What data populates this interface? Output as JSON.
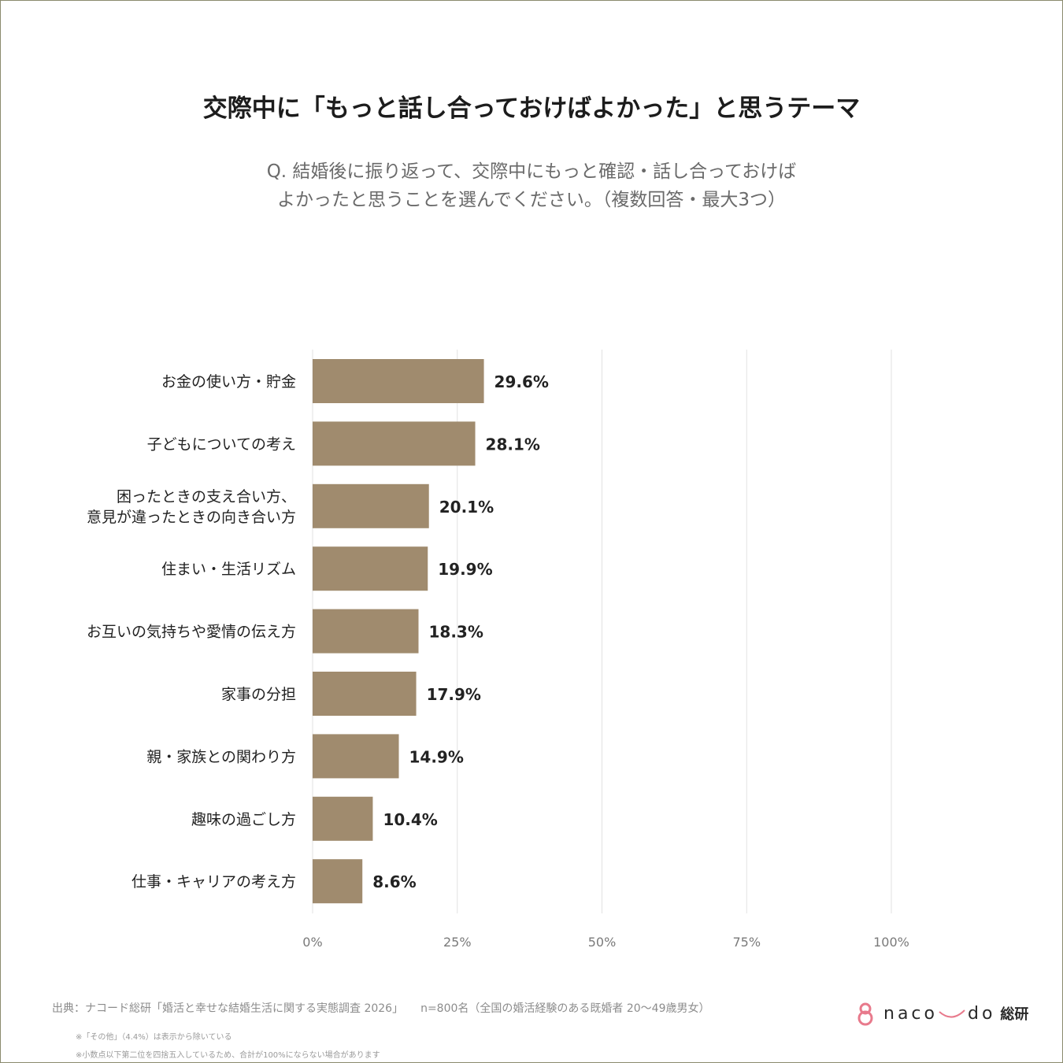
{
  "title": "交際中に「もっと話し合っておけばよかった」と思うテーマ",
  "question": {
    "line1": "Q. 結婚後に振り返って、交際中にもっと確認・話し合っておけば",
    "line2": "よかったと思うことを選んでください。（複数回答・最大3つ）"
  },
  "colors": {
    "bar": "#a08b6e",
    "grid": "#e2e2e2",
    "axis_text": "#7a7a7a",
    "label_text": "#222222",
    "logo_accent": "#e87a8c"
  },
  "chart_data": {
    "type": "bar",
    "orientation": "horizontal",
    "categories": [
      [
        "お金の使い方・貯金"
      ],
      [
        "子どもについての考え"
      ],
      [
        "困ったときの支え合い方、",
        "意見が違ったときの向き合い方"
      ],
      [
        "住まい・生活リズム"
      ],
      [
        "お互いの気持ちや愛情の伝え方"
      ],
      [
        "家事の分担"
      ],
      [
        "親・家族との関わり方"
      ],
      [
        "趣味の過ごし方"
      ],
      [
        "仕事・キャリアの考え方"
      ]
    ],
    "values": [
      29.6,
      28.1,
      20.1,
      19.9,
      18.3,
      17.9,
      14.9,
      10.4,
      8.6
    ],
    "value_labels": [
      "29.6%",
      "28.1%",
      "20.1%",
      "19.9%",
      "18.3%",
      "17.9%",
      "14.9%",
      "10.4%",
      "8.6%"
    ],
    "xlim": [
      0,
      100
    ],
    "xticks": [
      0,
      25,
      50,
      75,
      100
    ],
    "xtick_labels": [
      "0%",
      "25%",
      "50%",
      "75%",
      "100%"
    ],
    "grid": true,
    "legend": "none"
  },
  "footer": {
    "source": "出典：ナコード総研「婚活と幸せな結婚生活に関する実態調査 2026」",
    "sample": "n=800名（全国の婚活経験のある既婚者 20〜49歳男女）",
    "note1": "※「その他」（4.4%）は表示から除いている",
    "note2": "※小数点以下第二位を四捨五入しているため、合計が100%にならない場合があります"
  },
  "logo": {
    "text_left": "naco",
    "text_right": "do",
    "suffix": "総研",
    "icon": "ring-knot-icon"
  }
}
